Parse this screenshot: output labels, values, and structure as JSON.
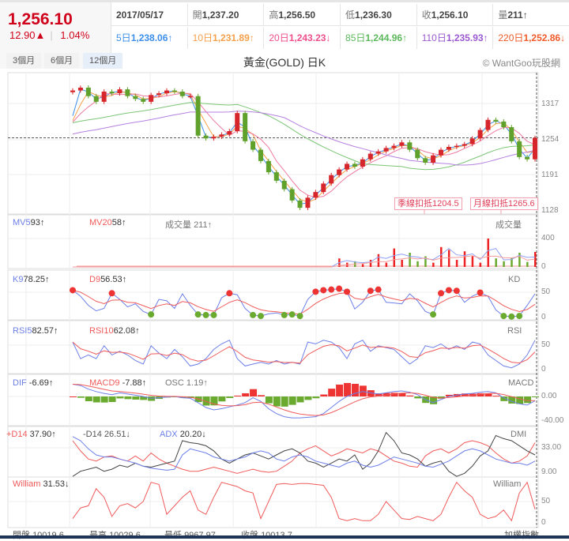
{
  "quote": {
    "price": "1,256.10",
    "change": "12.90▲",
    "percent": "1.04%"
  },
  "info_row": [
    {
      "label": "",
      "value": "2017/05/17"
    },
    {
      "label": "開",
      "value": "1,237.20"
    },
    {
      "label": "高",
      "value": "1,256.50"
    },
    {
      "label": "低",
      "value": "1,236.30"
    },
    {
      "label": "收",
      "value": "1,256.10"
    },
    {
      "label": "量",
      "value": "211↑"
    }
  ],
  "ma_row": [
    {
      "label": "5日",
      "value": "1,238.06↑",
      "color": "#3b8ee8"
    },
    {
      "label": "10日",
      "value": "1,231.89↑",
      "color": "#f5a04a"
    },
    {
      "label": "20日",
      "value": "1,243.23↓",
      "color": "#ee4f8a"
    },
    {
      "label": "85日",
      "value": "1,244.96↑",
      "color": "#5cb85c"
    },
    {
      "label": "110日",
      "value": "1,235.93↑",
      "color": "#9b59d0"
    },
    {
      "label": "220日",
      "value": "1,252.86↓",
      "color": "#f05a28"
    }
  ],
  "toolbar": {
    "tabs": [
      "3個月",
      "6個月",
      "12個月"
    ],
    "selected": "12個月",
    "title": "黃金(GOLD) 日K",
    "copyright": "© WantGoo玩股網"
  },
  "annotations": {
    "quarter": "季線扣抵1204.5",
    "month": "月線扣抵1265.6"
  },
  "legends": {
    "vol": {
      "mv5": "MV5",
      "mv5v": "93↑",
      "mv20": "MV20",
      "mv20v": "58↑",
      "vol": "成交量",
      "volv": "211↑",
      "name": "成交量"
    },
    "kd": {
      "k": "K9",
      "kv": "78.25↑",
      "d": "D9",
      "dv": "56.53↑",
      "name": "KD"
    },
    "rsi": {
      "r5": "RSI5",
      "r5v": "82.57↑",
      "r10": "RSI10",
      "r10v": "62.08↑",
      "name": "RSI"
    },
    "macd": {
      "dif": "DIF",
      "difv": "-6.69↑",
      "macd": "MACD9",
      "macdv": "-7.88↑",
      "osc": "OSC",
      "oscv": "1.19↑",
      "name": "MACD"
    },
    "dmi": {
      "pdi": "+D14",
      "pdiv": "37.90↑",
      "mdi": "-D14",
      "mdiv": "26.51↓",
      "adx": "ADX",
      "adxv": "20.20↓",
      "name": "DMI"
    },
    "wr": {
      "w": "William",
      "wv": "31.53↓",
      "name": "William"
    }
  },
  "axes": {
    "price": [
      "1317",
      "1254",
      "1191",
      "1128"
    ],
    "vol": [
      "400",
      "0"
    ],
    "kd": [
      "50",
      "0"
    ],
    "rsi": [
      "50",
      "0"
    ],
    "macd": [
      "0.00",
      "-40.00"
    ],
    "dmi": [
      "33.00",
      "9.00"
    ],
    "wr": [
      "50",
      "0"
    ]
  },
  "bottom": [
    {
      "label": "開盤",
      "value": "10019.6"
    },
    {
      "label": "最高",
      "value": "10029.6"
    },
    {
      "label": "最低",
      "value": "9967.97"
    },
    {
      "label": "收盤",
      "value": "10013.7"
    },
    {
      "label": "加權指數",
      "value": ""
    }
  ],
  "chart_data": {
    "type": "candlestick",
    "title": "黃金(GOLD) 日K",
    "price_range": [
      1110,
      1370
    ],
    "last_price": 1256.1,
    "close": [
      1340,
      1345,
      1330,
      1320,
      1338,
      1335,
      1342,
      1330,
      1325,
      1320,
      1332,
      1335,
      1340,
      1338,
      1330,
      1330,
      1260,
      1255,
      1258,
      1262,
      1268,
      1300,
      1250,
      1235,
      1215,
      1195,
      1180,
      1165,
      1145,
      1132,
      1150,
      1160,
      1175,
      1190,
      1200,
      1210,
      1205,
      1218,
      1228,
      1232,
      1238,
      1242,
      1248,
      1235,
      1220,
      1212,
      1225,
      1235,
      1240,
      1242,
      1245,
      1255,
      1270,
      1288,
      1285,
      1275,
      1250,
      1222,
      1218,
      1256
    ],
    "volume": [
      0,
      0,
      0,
      0,
      0,
      0,
      0,
      0,
      0,
      0,
      0,
      0,
      0,
      0,
      0,
      0,
      0,
      0,
      0,
      0,
      0,
      0,
      0,
      0,
      0,
      0,
      0,
      0,
      0,
      0,
      0,
      0,
      0,
      0,
      120,
      60,
      80,
      40,
      100,
      180,
      60,
      260,
      100,
      200,
      80,
      150,
      60,
      280,
      240,
      100,
      220,
      150,
      60,
      400,
      120,
      80,
      130,
      200,
      70,
      211
    ],
    "K": [
      90,
      70,
      40,
      22,
      30,
      80,
      60,
      35,
      45,
      20,
      10,
      60,
      55,
      30,
      78,
      40,
      10,
      8,
      8,
      65,
      80,
      75,
      30,
      8,
      5,
      12,
      15,
      8,
      10,
      5,
      60,
      85,
      90,
      92,
      95,
      85,
      28,
      50,
      88,
      92,
      50,
      48,
      45,
      78,
      55,
      20,
      10,
      80,
      90,
      88,
      50,
      70,
      82,
      70,
      25,
      5,
      3,
      5,
      40,
      78
    ],
    "RSI5": [
      75,
      30,
      40,
      30,
      65,
      40,
      50,
      40,
      25,
      15,
      65,
      45,
      30,
      55,
      35,
      10,
      15,
      30,
      55,
      70,
      80,
      30,
      10,
      15,
      20,
      15,
      25,
      15,
      20,
      15,
      75,
      70,
      80,
      75,
      60,
      30,
      70,
      80,
      50,
      65,
      60,
      55,
      35,
      15,
      30,
      65,
      60,
      70,
      55,
      65,
      55,
      75,
      70,
      40,
      25,
      10,
      5,
      15,
      40,
      80
    ],
    "DIF": [
      20,
      18,
      12,
      8,
      5,
      3,
      6,
      4,
      2,
      0,
      -3,
      -2,
      -1,
      0,
      -2,
      -3,
      -10,
      -18,
      -22,
      -20,
      -17,
      -14,
      -10,
      -2,
      -8,
      -20,
      -28,
      -33,
      -35,
      -35,
      -34,
      -33,
      -28,
      -18,
      -8,
      0,
      5,
      8,
      6,
      4,
      6,
      8,
      9,
      7,
      3,
      -5,
      -10,
      -5,
      0,
      2,
      4,
      5,
      7,
      8,
      6,
      -2,
      -8,
      -12,
      -14,
      -7
    ],
    "PDI": [
      40,
      30,
      22,
      20,
      24,
      25,
      22,
      20,
      25,
      20,
      28,
      22,
      18,
      15,
      12,
      10,
      10,
      12,
      14,
      12,
      10,
      8,
      10,
      12,
      10,
      9,
      10,
      15,
      20,
      28,
      32,
      35,
      30,
      25,
      28,
      32,
      30,
      28,
      32,
      30,
      25,
      20,
      18,
      15,
      14,
      25,
      30,
      32,
      28,
      32,
      38,
      40,
      38,
      35,
      28,
      22,
      18,
      20,
      25,
      38
    ],
    "MDI": [
      5,
      10,
      12,
      14,
      10,
      12,
      16,
      14,
      18,
      15,
      14,
      16,
      18,
      20,
      40,
      38,
      37,
      35,
      30,
      22,
      18,
      22,
      26,
      28,
      25,
      22,
      26,
      30,
      32,
      28,
      20,
      18,
      14,
      18,
      22,
      20,
      26,
      12,
      18,
      30,
      48,
      40,
      28,
      26,
      22,
      15,
      18,
      20,
      10,
      5,
      8,
      15,
      25,
      30,
      45,
      42,
      40,
      35,
      30,
      26
    ],
    "ADX": [
      44,
      40,
      32,
      26,
      24,
      24,
      22,
      20,
      18,
      15,
      13,
      12,
      11,
      12,
      26,
      32,
      30,
      28,
      24,
      22,
      20,
      22,
      24,
      28,
      30,
      28,
      22,
      20,
      24,
      26,
      24,
      20,
      18,
      16,
      14,
      18,
      20,
      16,
      14,
      16,
      20,
      24,
      22,
      20,
      18,
      15,
      14,
      17,
      20,
      25,
      30,
      32,
      30,
      26,
      22,
      20,
      18,
      18,
      16,
      20
    ],
    "William": [
      10,
      35,
      40,
      80,
      60,
      15,
      40,
      45,
      35,
      50,
      95,
      90,
      20,
      40,
      60,
      75,
      30,
      20,
      60,
      95,
      90,
      85,
      75,
      70,
      10,
      50,
      90,
      92,
      90,
      92,
      92,
      90,
      88,
      60,
      10,
      5,
      10,
      5,
      5,
      20,
      50,
      30,
      10,
      8,
      15,
      10,
      5,
      20,
      60,
      95,
      75,
      60,
      20,
      10,
      15,
      30,
      5,
      70,
      95,
      32
    ]
  }
}
